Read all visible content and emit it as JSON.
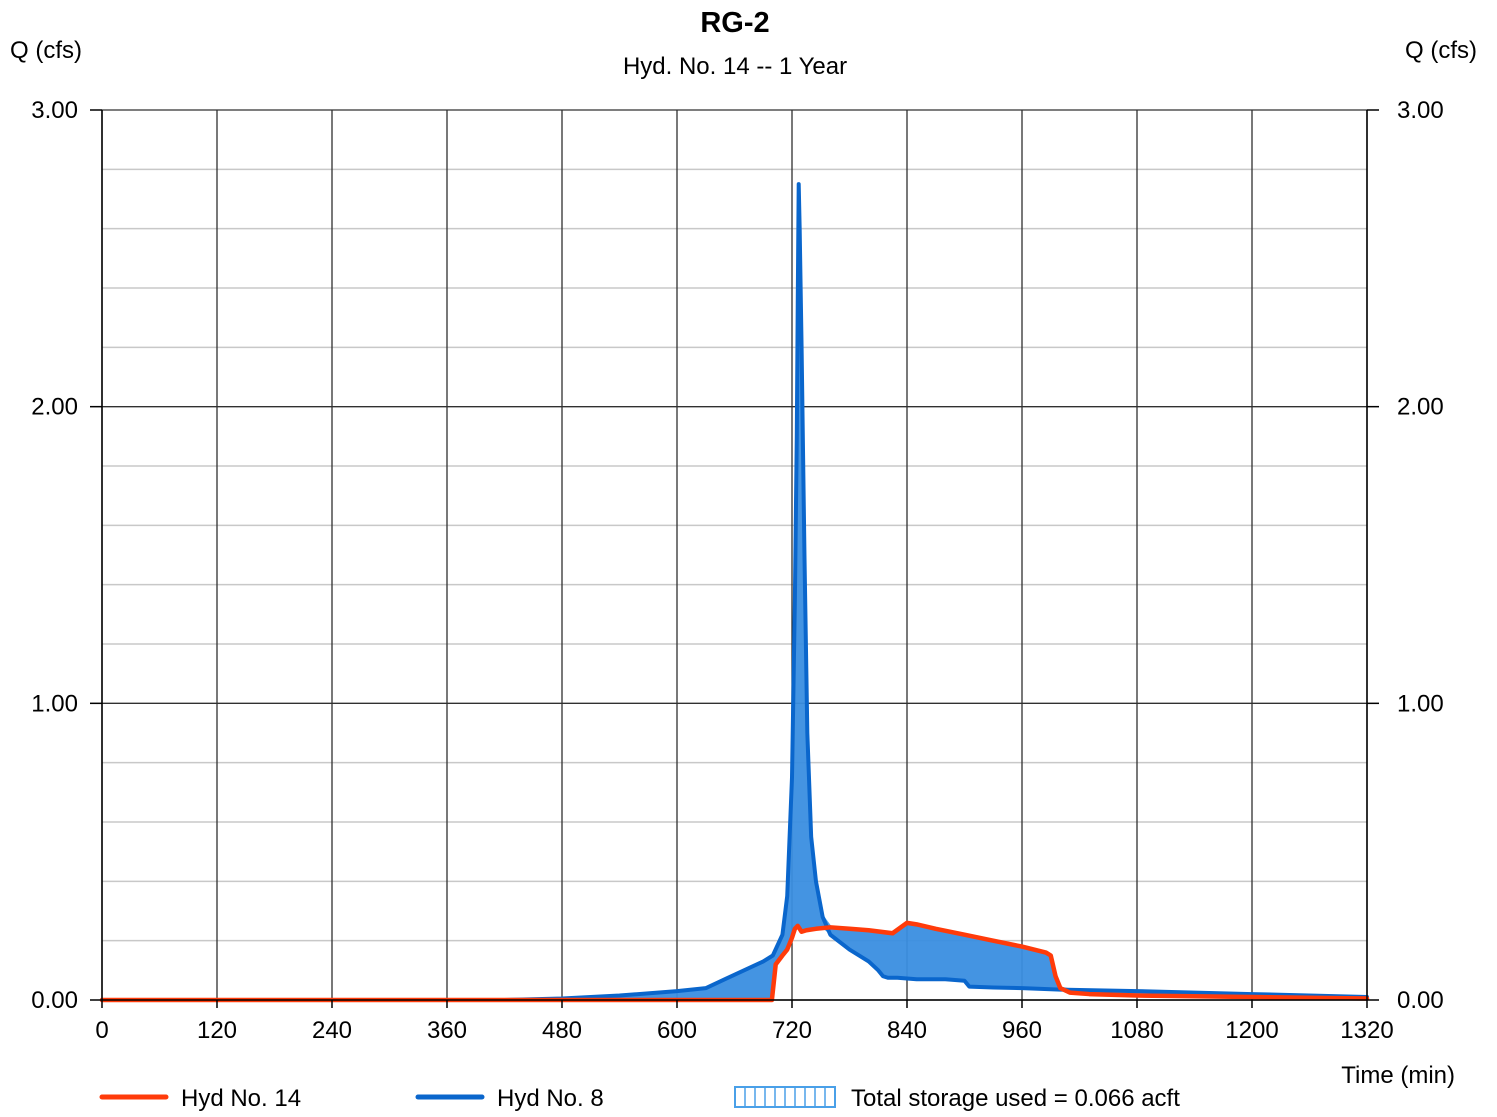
{
  "chart_data": {
    "type": "line",
    "title": "RG-2",
    "subtitle": "Hyd. No. 14 -- 1 Year",
    "ylabel_left": "Q (cfs)",
    "ylabel_right": "Q (cfs)",
    "xlabel": "Time (min)",
    "xlim": [
      0,
      1320
    ],
    "ylim": [
      0,
      3
    ],
    "x_ticks": [
      "0",
      "120",
      "240",
      "360",
      "480",
      "600",
      "720",
      "840",
      "960",
      "1080",
      "1200",
      "1320"
    ],
    "y_ticks": [
      "0.00",
      "1.00",
      "2.00",
      "3.00"
    ],
    "x_tick_values": [
      0,
      120,
      240,
      360,
      480,
      600,
      720,
      840,
      960,
      1080,
      1200,
      1320
    ],
    "y_tick_values": [
      0,
      1,
      2,
      3
    ],
    "y_minor_step": 0.2,
    "grid": true,
    "legend_placement": "bottom",
    "series": [
      {
        "name": "Hyd No. 14",
        "color": "#ff3b0a",
        "x": [
          0,
          500,
          699,
          701,
          703,
          710,
          715,
          720,
          723,
          726,
          730,
          735,
          745,
          760,
          780,
          800,
          825,
          840,
          850,
          870,
          900,
          930,
          960,
          985,
          990,
          995,
          1000,
          1010,
          1030,
          1080,
          1200,
          1320
        ],
        "y": [
          0,
          0,
          0,
          0.06,
          0.12,
          0.15,
          0.17,
          0.21,
          0.24,
          0.25,
          0.23,
          0.235,
          0.24,
          0.245,
          0.24,
          0.235,
          0.225,
          0.26,
          0.255,
          0.24,
          0.22,
          0.2,
          0.18,
          0.16,
          0.15,
          0.08,
          0.04,
          0.025,
          0.02,
          0.015,
          0.01,
          0.005
        ]
      },
      {
        "name": "Hyd No. 8",
        "color": "#0a66cc",
        "x": [
          0,
          420,
          480,
          540,
          600,
          630,
          650,
          670,
          690,
          700,
          710,
          715,
          720,
          723,
          725,
          726,
          727,
          728,
          730,
          733,
          736,
          740,
          745,
          752,
          760,
          780,
          800,
          810,
          815,
          820,
          830,
          850,
          880,
          900,
          905,
          930,
          960,
          1000,
          1080,
          1200,
          1320
        ],
        "y": [
          0,
          0,
          0.005,
          0.015,
          0.03,
          0.04,
          0.07,
          0.1,
          0.13,
          0.15,
          0.22,
          0.35,
          0.75,
          1.35,
          1.9,
          2.35,
          2.75,
          2.6,
          2.2,
          1.5,
          0.9,
          0.55,
          0.4,
          0.28,
          0.22,
          0.17,
          0.13,
          0.1,
          0.08,
          0.075,
          0.075,
          0.07,
          0.07,
          0.065,
          0.045,
          0.042,
          0.04,
          0.035,
          0.03,
          0.02,
          0.01
        ]
      }
    ],
    "storage": {
      "label": "Total storage used = 0.066 acft",
      "fill_color": "#3a8ee0",
      "edge_color": "#4aa0e8"
    }
  }
}
